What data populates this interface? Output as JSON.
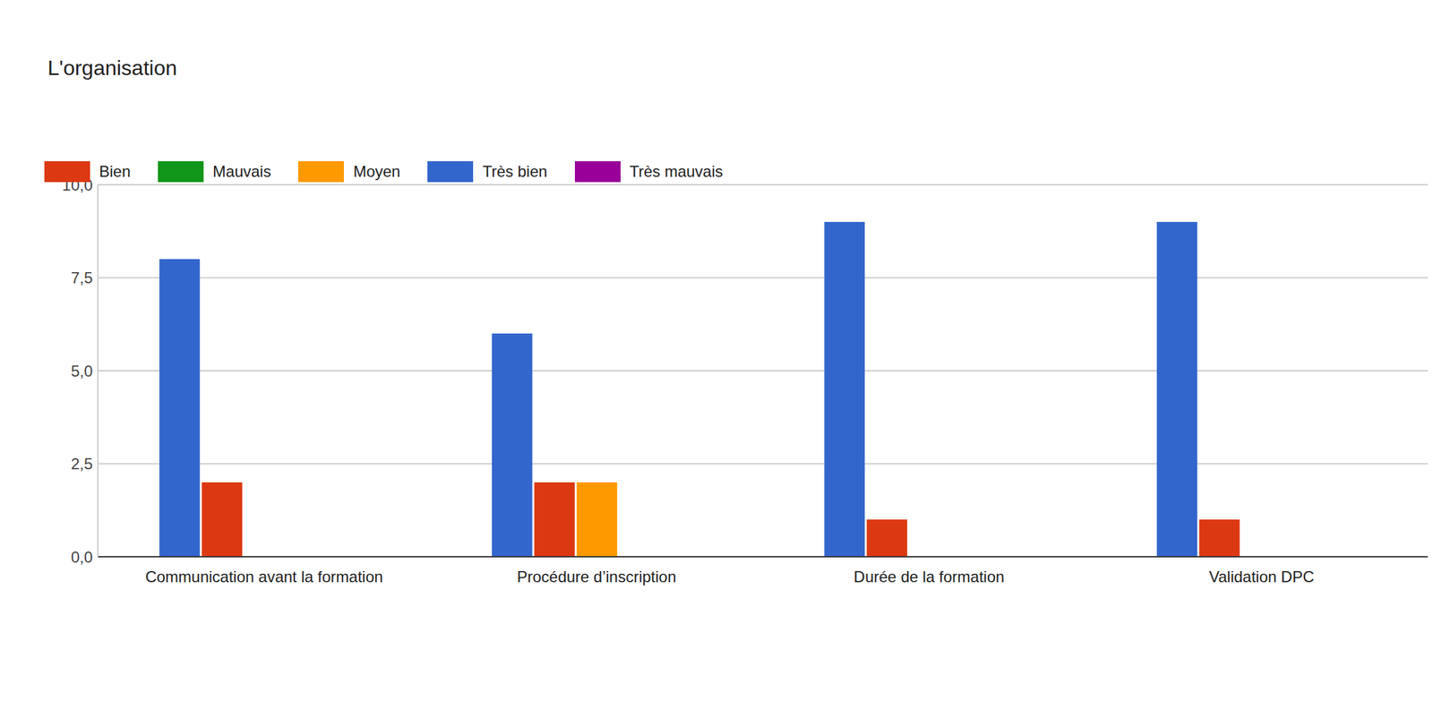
{
  "chart_data": {
    "type": "bar",
    "title": "L'organisation",
    "categories": [
      "Communication avant la formation",
      "Procédure d’inscription",
      "Durée de la formation",
      "Validation DPC"
    ],
    "series": [
      {
        "name": "Très bien",
        "color": "#3366cc",
        "values": [
          8,
          6,
          9,
          9
        ]
      },
      {
        "name": "Bien",
        "color": "#dc3912",
        "values": [
          2,
          2,
          1,
          1
        ]
      },
      {
        "name": "Moyen",
        "color": "#ff9900",
        "values": [
          0,
          2,
          0,
          0
        ]
      },
      {
        "name": "Mauvais",
        "color": "#109618",
        "values": [
          0,
          0,
          0,
          0
        ]
      },
      {
        "name": "Très mauvais",
        "color": "#990099",
        "values": [
          0,
          0,
          0,
          0
        ]
      }
    ],
    "ylim": [
      0,
      10
    ],
    "yticks": [
      {
        "value": 0,
        "label": "0,0"
      },
      {
        "value": 2.5,
        "label": "2,5"
      },
      {
        "value": 5,
        "label": "5,0"
      },
      {
        "value": 7.5,
        "label": "7,5"
      },
      {
        "value": 10,
        "label": "10,0"
      }
    ],
    "grid": true,
    "legend": "top-left"
  }
}
